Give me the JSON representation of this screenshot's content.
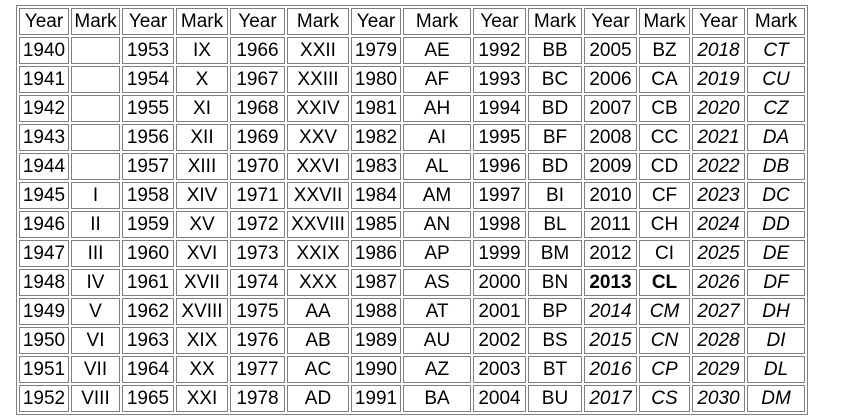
{
  "headers": [
    "Year",
    "Mark",
    "Year",
    "Mark",
    "Year",
    "Mark",
    "Year",
    "Mark",
    "Year",
    "Mark",
    "Year",
    "Mark",
    "Year",
    "Mark"
  ],
  "column_groups": [
    {
      "years": [
        "1940",
        "1941",
        "1942",
        "1943",
        "1944",
        "1945",
        "1946",
        "1947",
        "1948",
        "1949",
        "1950",
        "1951",
        "1952"
      ],
      "marks": [
        "",
        "",
        "",
        "",
        "",
        "I",
        "II",
        "III",
        "IV",
        "V",
        "VI",
        "VII",
        "VIII"
      ]
    },
    {
      "years": [
        "1953",
        "1954",
        "1955",
        "1956",
        "1957",
        "1958",
        "1959",
        "1960",
        "1961",
        "1962",
        "1963",
        "1964",
        "1965"
      ],
      "marks": [
        "IX",
        "X",
        "XI",
        "XII",
        "XIII",
        "XIV",
        "XV",
        "XVI",
        "XVII",
        "XVIII",
        "XIX",
        "XX",
        "XXI"
      ]
    },
    {
      "years": [
        "1966",
        "1967",
        "1968",
        "1969",
        "1970",
        "1971",
        "1972",
        "1973",
        "1974",
        "1975",
        "1976",
        "1977",
        "1978"
      ],
      "marks": [
        "XXII",
        "XXIII",
        "XXIV",
        "XXV",
        "XXVI",
        "XXVII",
        "XXVIII",
        "XXIX",
        "XXX",
        "AA",
        "AB",
        "AC",
        "AD"
      ]
    },
    {
      "years": [
        "1979",
        "1980",
        "1981",
        "1982",
        "1983",
        "1984",
        "1985",
        "1986",
        "1987",
        "1988",
        "1989",
        "1990",
        "1991"
      ],
      "marks": [
        "AE",
        "AF",
        "AH",
        "AI",
        "AL",
        "AM",
        "AN",
        "AP",
        "AS",
        "AT",
        "AU",
        "AZ",
        "BA"
      ]
    },
    {
      "years": [
        "1992",
        "1993",
        "1994",
        "1995",
        "1996",
        "1997",
        "1998",
        "1999",
        "2000",
        "2001",
        "2002",
        "2003",
        "2004"
      ],
      "marks": [
        "BB",
        "BC",
        "BD",
        "BF",
        "BD",
        "BI",
        "BL",
        "BM",
        "BN",
        "BP",
        "BS",
        "BT",
        "BU"
      ]
    },
    {
      "years": [
        "2005",
        "2006",
        "2007",
        "2008",
        "2009",
        "2010",
        "2011",
        "2012",
        "2013",
        "2014",
        "2015",
        "2016",
        "2017"
      ],
      "marks": [
        "BZ",
        "CA",
        "CB",
        "CC",
        "CD",
        "CF",
        "CH",
        "CI",
        "CL",
        "CM",
        "CN",
        "CP",
        "CS"
      ],
      "emphasis": [
        "",
        "",
        "",
        "",
        "",
        "",
        "",
        "",
        "bold",
        "italic",
        "italic",
        "italic",
        "italic"
      ]
    },
    {
      "years": [
        "2018",
        "2019",
        "2020",
        "2021",
        "2022",
        "2023",
        "2024",
        "2025",
        "2026",
        "2027",
        "2028",
        "2029",
        "2030"
      ],
      "marks": [
        "CT",
        "CU",
        "CZ",
        "DA",
        "DB",
        "DC",
        "DD",
        "DE",
        "DF",
        "DH",
        "DI",
        "DL",
        "DM"
      ],
      "emphasis": [
        "italic",
        "italic",
        "italic",
        "italic",
        "italic",
        "italic",
        "italic",
        "italic",
        "italic",
        "italic",
        "italic",
        "italic",
        "italic"
      ]
    }
  ]
}
